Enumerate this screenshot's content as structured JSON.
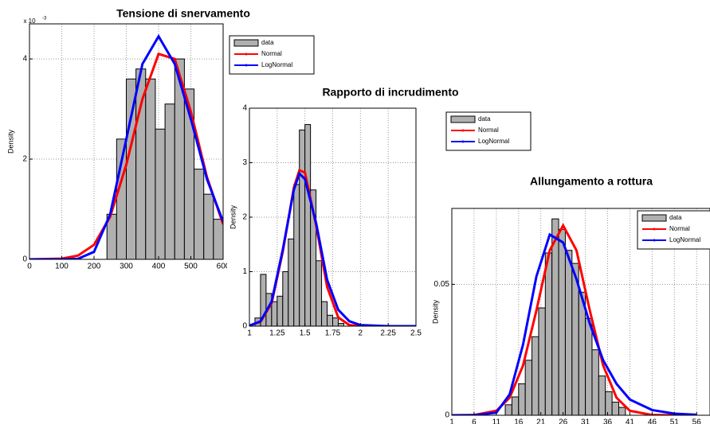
{
  "chart_data": [
    {
      "type": "histogram",
      "title": "Tensione di snervamento",
      "y_label": "Density",
      "y_scale": {
        "base": "x 10",
        "exponent": "-3"
      },
      "name": "data",
      "color": "#b0b0b0",
      "bins": [
        240,
        270,
        300,
        330,
        360,
        390,
        420,
        450,
        480,
        510,
        540,
        570,
        600
      ],
      "values": [
        0.9,
        2.4,
        3.6,
        3.8,
        3.6,
        2.6,
        3.1,
        4.0,
        3.4,
        1.8,
        1.3,
        0.8
      ],
      "series": [
        {
          "name": "Normal",
          "color": "#ff0000",
          "x": [
            0,
            100,
            150,
            200,
            250,
            300,
            350,
            400,
            450,
            500,
            550,
            600
          ],
          "values": [
            0,
            0.014,
            0.074,
            0.29,
            0.85,
            1.89,
            3.2,
            4.1,
            4.0,
            2.95,
            1.64,
            0.7
          ]
        },
        {
          "name": "LogNormal",
          "color": "#0000ff",
          "x": [
            0,
            100,
            150,
            200,
            250,
            300,
            350,
            400,
            450,
            500,
            550,
            600
          ],
          "values": [
            0,
            0,
            0.01,
            0.15,
            0.9,
            2.4,
            3.9,
            4.45,
            3.9,
            2.8,
            1.6,
            0.75
          ]
        }
      ],
      "xlim": [
        0,
        600
      ],
      "xticks": [
        0,
        100,
        200,
        300,
        400,
        500,
        600
      ],
      "ylim": [
        0,
        4.7
      ],
      "yticks": [
        0,
        2,
        4
      ],
      "grid": true
    },
    {
      "type": "histogram",
      "title": "Rapporto di incrudimento",
      "y_label": "Density",
      "name": "data",
      "color": "#b0b0b0",
      "bins": [
        1.05,
        1.1,
        1.15,
        1.2,
        1.25,
        1.3,
        1.35,
        1.4,
        1.45,
        1.5,
        1.55,
        1.6,
        1.65,
        1.7,
        1.75,
        1.8,
        1.85
      ],
      "values": [
        0.15,
        0.95,
        0.6,
        0.45,
        0.55,
        1.0,
        1.6,
        2.6,
        3.6,
        3.7,
        2.5,
        1.2,
        0.45,
        0.2,
        0.15,
        0.05
      ],
      "series": [
        {
          "name": "Normal",
          "color": "#ff0000",
          "x": [
            1,
            1.1,
            1.2,
            1.3,
            1.4,
            1.45,
            1.5,
            1.6,
            1.7,
            1.8,
            1.9,
            2,
            2.25,
            2.5
          ],
          "values": [
            0.009,
            0.08,
            0.42,
            1.36,
            2.54,
            2.86,
            2.82,
            1.86,
            0.72,
            0.16,
            0.02,
            0,
            0,
            0
          ]
        },
        {
          "name": "LogNormal",
          "color": "#0000ff",
          "x": [
            1,
            1.1,
            1.2,
            1.3,
            1.4,
            1.45,
            1.5,
            1.6,
            1.7,
            1.8,
            1.9,
            2,
            2.25,
            2.5
          ],
          "values": [
            0.01,
            0.09,
            0.45,
            1.4,
            2.5,
            2.8,
            2.7,
            1.9,
            0.85,
            0.3,
            0.09,
            0.02,
            0,
            0
          ]
        }
      ],
      "xlim": [
        1,
        2.5
      ],
      "xticks": [
        1,
        1.25,
        1.5,
        1.75,
        2,
        2.25,
        2.5
      ],
      "ylim": [
        0,
        4
      ],
      "yticks": [
        0,
        1,
        2,
        3,
        4
      ],
      "grid": true
    },
    {
      "type": "histogram",
      "title": "Allungamento a rottura",
      "y_label": "Density",
      "name": "data",
      "color": "#b0b0b0",
      "bins": [
        13,
        14.5,
        16,
        17.5,
        19,
        20.5,
        22,
        23.5,
        25,
        26.5,
        28,
        29.5,
        31,
        32.5,
        34,
        35.5,
        37,
        38.5,
        40
      ],
      "values": [
        0.004,
        0.007,
        0.012,
        0.021,
        0.03,
        0.041,
        0.062,
        0.075,
        0.071,
        0.063,
        0.058,
        0.047,
        0.037,
        0.025,
        0.015,
        0.009,
        0.005,
        0.003
      ],
      "series": [
        {
          "name": "Normal",
          "color": "#ff0000",
          "x": [
            1,
            6,
            11,
            14,
            17,
            20,
            23,
            26,
            29,
            32,
            35,
            38,
            41,
            46,
            51,
            56
          ],
          "values": [
            0,
            0.0001,
            0.0017,
            0.0067,
            0.019,
            0.04,
            0.063,
            0.0725,
            0.063,
            0.04,
            0.019,
            0.0067,
            0.0017,
            0.0001,
            0,
            0
          ]
        },
        {
          "name": "LogNormal",
          "color": "#0000ff",
          "x": [
            1,
            6,
            11,
            14,
            17,
            20,
            23,
            26,
            29,
            32,
            35,
            38,
            41,
            46,
            51,
            56
          ],
          "values": [
            0,
            0,
            0.001,
            0.008,
            0.027,
            0.053,
            0.069,
            0.066,
            0.052,
            0.035,
            0.021,
            0.012,
            0.006,
            0.002,
            0.0006,
            0.0002
          ]
        }
      ],
      "xlim": [
        1,
        59
      ],
      "xticks": [
        1,
        6,
        11,
        16,
        21,
        26,
        31,
        36,
        41,
        46,
        51,
        56
      ],
      "ylim": [
        0,
        0.079
      ],
      "yticks": [
        0,
        0.05
      ],
      "grid": true
    }
  ]
}
